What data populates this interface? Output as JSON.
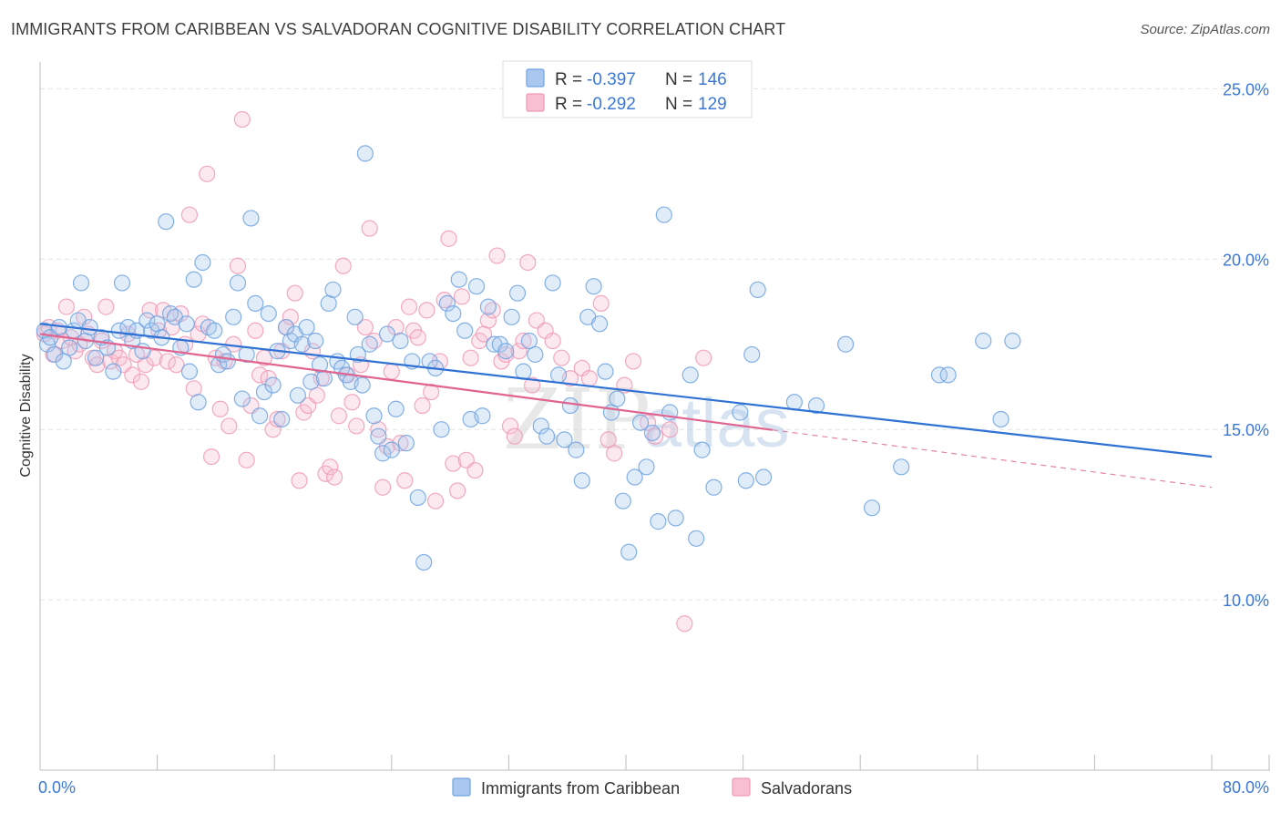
{
  "header": {
    "title": "IMMIGRANTS FROM CARIBBEAN VS SALVADORAN COGNITIVE DISABILITY CORRELATION CHART",
    "source": "Source: ZipAtlas.com"
  },
  "watermark": {
    "zip": "ZIP",
    "atlas": "atlas"
  },
  "colors": {
    "blue": "#6fa3e0",
    "blue_line": "#2f72d4",
    "blue_fill": "#aac8ef",
    "pink": "#f09ab6",
    "pink_line": "#e0648f",
    "pink_fill": "#f7bfd1",
    "label_blue": "#3b78d6",
    "grid": "#e4e4e4"
  },
  "legend_top": {
    "rows": [
      {
        "series": "blue",
        "r_label": "R = ",
        "r_value": "-0.397",
        "n_label": "N = ",
        "n_value": "146"
      },
      {
        "series": "pink",
        "r_label": "R = ",
        "r_value": "-0.292",
        "n_label": "N = ",
        "n_value": "129"
      }
    ]
  },
  "legend_bottom": {
    "items": [
      {
        "series": "blue",
        "label": "Immigrants from Caribbean"
      },
      {
        "series": "pink",
        "label": "Salvadorans"
      }
    ]
  },
  "chart_data": {
    "type": "scatter",
    "title": "IMMIGRANTS FROM CARIBBEAN VS SALVADORAN COGNITIVE DISABILITY CORRELATION CHART",
    "xlabel": "",
    "ylabel": "Cognitive Disability",
    "xlim": [
      0,
      80
    ],
    "ylim": [
      5,
      26
    ],
    "x_tick_labels": [
      "0.0%",
      "80.0%"
    ],
    "y_ticks": [
      10,
      15,
      20,
      25
    ],
    "y_tick_labels": [
      "10.0%",
      "15.0%",
      "20.0%",
      "25.0%"
    ],
    "grid": true,
    "legend_position": "top-center",
    "series": [
      {
        "name": "Immigrants from Caribbean",
        "color": "#6fa3e0",
        "r": -0.397,
        "n": 146,
        "trend": {
          "x0": 0,
          "y0": 18.1,
          "x1": 80,
          "y1": 14.2,
          "solid_to": 80
        },
        "points": [
          [
            0.3,
            17.9
          ],
          [
            0.5,
            17.5
          ],
          [
            0.7,
            17.7
          ],
          [
            1.0,
            17.2
          ],
          [
            1.3,
            18.0
          ],
          [
            1.6,
            17.0
          ],
          [
            2.0,
            17.4
          ],
          [
            2.3,
            17.9
          ],
          [
            2.6,
            18.2
          ],
          [
            2.8,
            19.3
          ],
          [
            3.1,
            17.6
          ],
          [
            3.4,
            18.0
          ],
          [
            3.8,
            17.1
          ],
          [
            4.2,
            17.7
          ],
          [
            4.6,
            17.4
          ],
          [
            5.0,
            16.7
          ],
          [
            5.4,
            17.9
          ],
          [
            5.6,
            19.3
          ],
          [
            6.0,
            18.0
          ],
          [
            6.3,
            17.6
          ],
          [
            6.6,
            17.9
          ],
          [
            7.0,
            17.3
          ],
          [
            7.3,
            18.2
          ],
          [
            7.6,
            17.9
          ],
          [
            8.0,
            18.1
          ],
          [
            8.3,
            17.7
          ],
          [
            8.6,
            21.1
          ],
          [
            8.9,
            18.4
          ],
          [
            9.2,
            18.3
          ],
          [
            9.6,
            17.4
          ],
          [
            10.0,
            18.1
          ],
          [
            10.2,
            16.7
          ],
          [
            10.5,
            19.4
          ],
          [
            10.8,
            15.8
          ],
          [
            11.1,
            19.9
          ],
          [
            11.5,
            18.0
          ],
          [
            11.9,
            17.9
          ],
          [
            12.2,
            16.9
          ],
          [
            12.5,
            17.2
          ],
          [
            12.8,
            17.0
          ],
          [
            13.2,
            18.3
          ],
          [
            13.5,
            19.3
          ],
          [
            13.8,
            15.9
          ],
          [
            14.1,
            17.2
          ],
          [
            14.4,
            21.2
          ],
          [
            14.7,
            18.7
          ],
          [
            15.0,
            15.4
          ],
          [
            15.3,
            16.1
          ],
          [
            15.6,
            18.4
          ],
          [
            15.9,
            16.3
          ],
          [
            16.2,
            17.3
          ],
          [
            16.5,
            15.3
          ],
          [
            16.8,
            18.0
          ],
          [
            17.1,
            17.6
          ],
          [
            17.4,
            17.8
          ],
          [
            17.6,
            16.0
          ],
          [
            17.9,
            17.5
          ],
          [
            18.2,
            18.0
          ],
          [
            18.5,
            16.4
          ],
          [
            18.8,
            17.6
          ],
          [
            19.1,
            16.9
          ],
          [
            19.4,
            16.5
          ],
          [
            19.7,
            18.7
          ],
          [
            20.0,
            19.1
          ],
          [
            20.3,
            17.0
          ],
          [
            20.6,
            16.8
          ],
          [
            20.9,
            16.6
          ],
          [
            21.2,
            16.4
          ],
          [
            21.5,
            18.3
          ],
          [
            21.7,
            17.2
          ],
          [
            22.0,
            16.3
          ],
          [
            22.2,
            23.1
          ],
          [
            22.5,
            17.5
          ],
          [
            22.8,
            15.4
          ],
          [
            23.1,
            14.8
          ],
          [
            23.4,
            14.3
          ],
          [
            23.7,
            17.8
          ],
          [
            24.0,
            14.4
          ],
          [
            24.3,
            15.6
          ],
          [
            24.6,
            17.6
          ],
          [
            25.0,
            14.6
          ],
          [
            25.4,
            17.0
          ],
          [
            25.8,
            13.0
          ],
          [
            26.2,
            11.1
          ],
          [
            26.6,
            17.0
          ],
          [
            27.0,
            16.8
          ],
          [
            27.4,
            15.0
          ],
          [
            27.8,
            18.7
          ],
          [
            28.2,
            18.4
          ],
          [
            28.6,
            19.4
          ],
          [
            29.0,
            17.9
          ],
          [
            29.4,
            15.3
          ],
          [
            29.8,
            19.2
          ],
          [
            30.2,
            15.4
          ],
          [
            30.6,
            18.6
          ],
          [
            31.0,
            17.5
          ],
          [
            31.4,
            17.5
          ],
          [
            31.8,
            17.3
          ],
          [
            32.2,
            18.3
          ],
          [
            32.6,
            19.0
          ],
          [
            33.0,
            16.7
          ],
          [
            33.4,
            17.6
          ],
          [
            33.8,
            17.2
          ],
          [
            34.2,
            15.1
          ],
          [
            34.6,
            14.8
          ],
          [
            35.0,
            19.3
          ],
          [
            35.4,
            16.6
          ],
          [
            35.8,
            14.7
          ],
          [
            36.2,
            15.7
          ],
          [
            36.6,
            14.4
          ],
          [
            37.0,
            13.5
          ],
          [
            37.4,
            18.3
          ],
          [
            37.8,
            19.2
          ],
          [
            38.2,
            18.1
          ],
          [
            38.6,
            16.7
          ],
          [
            39.0,
            15.5
          ],
          [
            39.4,
            15.9
          ],
          [
            39.8,
            12.9
          ],
          [
            40.2,
            11.4
          ],
          [
            40.6,
            13.6
          ],
          [
            41.0,
            15.2
          ],
          [
            41.4,
            13.9
          ],
          [
            41.8,
            14.9
          ],
          [
            42.2,
            12.3
          ],
          [
            42.6,
            21.3
          ],
          [
            43.0,
            15.5
          ],
          [
            43.4,
            12.4
          ],
          [
            44.4,
            16.6
          ],
          [
            44.8,
            11.8
          ],
          [
            45.2,
            14.4
          ],
          [
            46.0,
            13.3
          ],
          [
            47.8,
            15.5
          ],
          [
            48.2,
            13.5
          ],
          [
            48.6,
            17.2
          ],
          [
            49.0,
            19.1
          ],
          [
            49.4,
            13.6
          ],
          [
            51.5,
            15.8
          ],
          [
            53.0,
            15.7
          ],
          [
            55.0,
            17.5
          ],
          [
            56.8,
            12.7
          ],
          [
            58.8,
            13.9
          ],
          [
            61.4,
            16.6
          ],
          [
            64.4,
            17.6
          ],
          [
            65.6,
            15.3
          ],
          [
            66.4,
            17.6
          ],
          [
            62.0,
            16.6
          ]
        ]
      },
      {
        "name": "Salvadorans",
        "color": "#f09ab6",
        "r": -0.292,
        "n": 129,
        "trend": {
          "x0": 0,
          "y0": 17.8,
          "x1": 80,
          "y1": 13.3,
          "solid_to": 50
        },
        "points": [
          [
            0.3,
            17.8
          ],
          [
            0.6,
            18.0
          ],
          [
            0.9,
            17.2
          ],
          [
            1.2,
            17.9
          ],
          [
            1.5,
            17.6
          ],
          [
            1.8,
            18.6
          ],
          [
            2.1,
            17.7
          ],
          [
            2.4,
            17.3
          ],
          [
            2.7,
            17.5
          ],
          [
            3.0,
            18.3
          ],
          [
            3.3,
            17.8
          ],
          [
            3.6,
            17.1
          ],
          [
            3.9,
            16.9
          ],
          [
            4.2,
            17.6
          ],
          [
            4.5,
            18.6
          ],
          [
            4.8,
            17.0
          ],
          [
            5.1,
            17.3
          ],
          [
            5.4,
            17.1
          ],
          [
            5.7,
            16.9
          ],
          [
            6.0,
            17.8
          ],
          [
            6.3,
            16.6
          ],
          [
            6.6,
            17.2
          ],
          [
            6.9,
            16.4
          ],
          [
            7.2,
            16.9
          ],
          [
            7.5,
            18.5
          ],
          [
            7.8,
            17.1
          ],
          [
            8.1,
            17.9
          ],
          [
            8.4,
            18.5
          ],
          [
            8.7,
            17.0
          ],
          [
            9.0,
            18.0
          ],
          [
            9.3,
            16.9
          ],
          [
            9.6,
            18.4
          ],
          [
            9.9,
            17.5
          ],
          [
            10.2,
            21.3
          ],
          [
            10.5,
            16.2
          ],
          [
            10.8,
            17.8
          ],
          [
            11.1,
            18.1
          ],
          [
            11.4,
            22.5
          ],
          [
            11.7,
            14.2
          ],
          [
            12.0,
            17.1
          ],
          [
            12.3,
            15.6
          ],
          [
            12.6,
            17.0
          ],
          [
            12.9,
            15.1
          ],
          [
            13.2,
            17.5
          ],
          [
            13.5,
            19.8
          ],
          [
            13.8,
            24.1
          ],
          [
            14.1,
            14.1
          ],
          [
            14.4,
            15.7
          ],
          [
            14.7,
            17.9
          ],
          [
            15.0,
            16.6
          ],
          [
            15.3,
            17.1
          ],
          [
            15.6,
            16.5
          ],
          [
            15.9,
            15.0
          ],
          [
            16.2,
            15.3
          ],
          [
            16.5,
            17.3
          ],
          [
            16.8,
            18.0
          ],
          [
            17.1,
            18.3
          ],
          [
            17.4,
            19.0
          ],
          [
            17.7,
            13.5
          ],
          [
            18.0,
            15.5
          ],
          [
            18.3,
            15.7
          ],
          [
            18.6,
            17.3
          ],
          [
            18.9,
            16.0
          ],
          [
            19.2,
            16.5
          ],
          [
            19.5,
            13.7
          ],
          [
            19.8,
            13.9
          ],
          [
            20.1,
            13.6
          ],
          [
            20.4,
            15.4
          ],
          [
            20.7,
            19.8
          ],
          [
            21.0,
            16.6
          ],
          [
            21.3,
            15.8
          ],
          [
            21.6,
            15.1
          ],
          [
            21.9,
            16.9
          ],
          [
            22.2,
            18.0
          ],
          [
            22.5,
            20.9
          ],
          [
            22.8,
            17.6
          ],
          [
            23.1,
            15.0
          ],
          [
            23.4,
            13.3
          ],
          [
            23.7,
            14.5
          ],
          [
            24.0,
            16.7
          ],
          [
            24.3,
            18.0
          ],
          [
            24.6,
            14.6
          ],
          [
            24.9,
            13.5
          ],
          [
            25.2,
            18.6
          ],
          [
            25.5,
            17.9
          ],
          [
            25.8,
            17.7
          ],
          [
            26.1,
            15.7
          ],
          [
            26.4,
            18.5
          ],
          [
            26.7,
            16.1
          ],
          [
            27.0,
            12.9
          ],
          [
            27.3,
            17.0
          ],
          [
            27.6,
            18.8
          ],
          [
            27.9,
            20.6
          ],
          [
            28.2,
            14.0
          ],
          [
            28.5,
            13.2
          ],
          [
            28.8,
            18.9
          ],
          [
            29.1,
            14.1
          ],
          [
            29.4,
            17.1
          ],
          [
            29.7,
            13.8
          ],
          [
            30.0,
            17.6
          ],
          [
            30.3,
            17.8
          ],
          [
            30.6,
            18.2
          ],
          [
            30.9,
            18.5
          ],
          [
            31.2,
            20.1
          ],
          [
            31.5,
            17.0
          ],
          [
            31.8,
            17.2
          ],
          [
            32.1,
            15.1
          ],
          [
            32.4,
            14.8
          ],
          [
            32.7,
            17.3
          ],
          [
            33.0,
            17.6
          ],
          [
            33.3,
            19.9
          ],
          [
            33.6,
            16.3
          ],
          [
            33.9,
            18.2
          ],
          [
            34.5,
            17.9
          ],
          [
            35.0,
            17.6
          ],
          [
            35.6,
            17.1
          ],
          [
            36.2,
            16.5
          ],
          [
            37.0,
            16.8
          ],
          [
            37.5,
            16.5
          ],
          [
            38.3,
            18.7
          ],
          [
            38.8,
            14.7
          ],
          [
            39.2,
            14.3
          ],
          [
            39.9,
            16.3
          ],
          [
            40.5,
            17.0
          ],
          [
            41.5,
            15.2
          ],
          [
            42.0,
            14.8
          ],
          [
            43.0,
            15.0
          ],
          [
            44.0,
            9.3
          ],
          [
            45.3,
            17.1
          ]
        ]
      }
    ]
  }
}
